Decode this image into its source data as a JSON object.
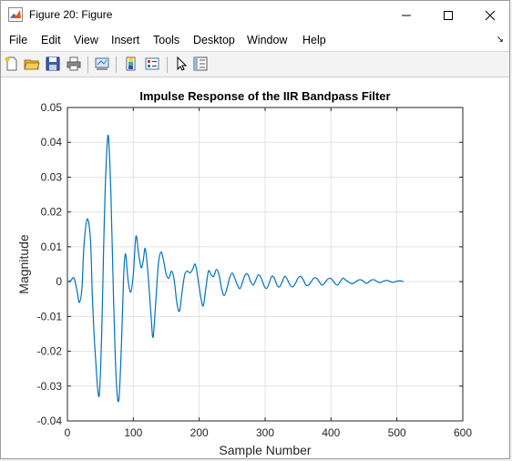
{
  "window": {
    "title": "Figure 20: Figure"
  },
  "menu": {
    "items": [
      "File",
      "Edit",
      "View",
      "Insert",
      "Tools",
      "Desktop",
      "Window",
      "Help"
    ]
  },
  "toolbar": {
    "icons": [
      "new-figure-icon",
      "open-file-icon",
      "save-icon",
      "print-icon",
      "link-plot-icon",
      "insert-colorbar-icon",
      "insert-legend-icon",
      "edit-plot-icon",
      "property-inspector-icon"
    ]
  },
  "chart_data": {
    "type": "line",
    "title": "Impulse Response of the IIR Bandpass Filter",
    "xlabel": "Sample Number",
    "ylabel": "Magnitude",
    "xlim": [
      0,
      600
    ],
    "ylim": [
      -0.04,
      0.05
    ],
    "xticks": [
      "0",
      "100",
      "200",
      "300",
      "400",
      "500",
      "600"
    ],
    "yticks": [
      "0.05",
      "0.04",
      "0.03",
      "0.02",
      "0.01",
      "0",
      "-0.01",
      "-0.02",
      "-0.03",
      "-0.04"
    ],
    "grid": true,
    "color": "#0072bd",
    "series": [
      {
        "x": [
          0,
          5,
          10,
          15,
          18,
          22,
          25,
          30,
          35,
          38,
          42,
          48,
          52,
          55,
          58,
          62,
          66,
          70,
          74,
          78,
          82,
          85,
          88,
          92,
          96,
          100,
          104,
          108,
          112,
          115,
          118,
          122,
          127,
          130,
          134,
          138,
          142,
          146,
          150,
          154,
          158,
          162,
          166,
          170,
          174,
          178,
          182,
          186,
          190,
          194,
          198,
          202,
          206,
          210,
          214,
          218,
          222,
          226,
          230,
          234,
          238,
          242,
          246,
          250,
          254,
          258,
          262,
          266,
          270,
          274,
          278,
          282,
          286,
          290,
          294,
          298,
          302,
          306,
          310,
          314,
          318,
          322,
          326,
          330,
          334,
          338,
          342,
          346,
          350,
          354,
          358,
          362,
          366,
          370,
          374,
          378,
          382,
          386,
          390,
          394,
          398,
          402,
          406,
          410,
          414,
          418,
          422,
          426,
          430,
          434,
          438,
          442,
          446,
          450,
          454,
          458,
          462,
          466,
          470,
          474,
          478,
          482,
          486,
          490,
          494,
          498,
          502,
          506,
          510
        ],
        "y": [
          0,
          0.0003,
          0.001,
          -0.003,
          -0.006,
          -0.002,
          0.01,
          0.018,
          0.012,
          -0.005,
          -0.02,
          -0.033,
          -0.015,
          0.01,
          0.03,
          0.042,
          0.025,
          -0.005,
          -0.028,
          -0.034,
          -0.018,
          0.0,
          0.008,
          0.0005,
          -0.003,
          0.002,
          0.013,
          0.008,
          0.004,
          0.006,
          0.0095,
          0.003,
          -0.01,
          -0.016,
          -0.006,
          0.005,
          0.0085,
          0.006,
          0.002,
          0.001,
          0.003,
          0.0005,
          -0.006,
          -0.0085,
          -0.003,
          0.002,
          0.003,
          0.0025,
          0.0035,
          0.005,
          0.001,
          -0.004,
          -0.007,
          -0.002,
          0.003,
          0.002,
          0.0015,
          0.0035,
          0.002,
          -0.002,
          -0.004,
          -0.002,
          0.001,
          0.0025,
          0.001,
          -0.001,
          -0.002,
          0.0,
          0.002,
          0.002,
          0.0,
          -0.001,
          0.0005,
          0.002,
          0.001,
          -0.001,
          -0.002,
          -0.0005,
          0.0015,
          0.001,
          -0.001,
          -0.0015,
          0.0,
          0.0015,
          0.0005,
          -0.001,
          -0.0015,
          -0.0005,
          0.001,
          0.0015,
          0.0005,
          -0.001,
          -0.001,
          0.0,
          0.001,
          0.001,
          0.0,
          -0.001,
          -0.0005,
          0.0005,
          0.001,
          0.0005,
          -0.0005,
          -0.001,
          0.0,
          0.001,
          0.0005,
          0.0,
          -0.0005,
          -0.0005,
          0.0,
          0.0005,
          0.0005,
          0.0,
          -0.0005,
          0.0,
          0.0005,
          0.0005,
          0.0,
          -0.0003,
          0.0,
          0.0003,
          0.0003,
          0.0,
          -0.0002,
          0.0,
          0.0002,
          0.0002,
          0.0
        ]
      }
    ]
  }
}
